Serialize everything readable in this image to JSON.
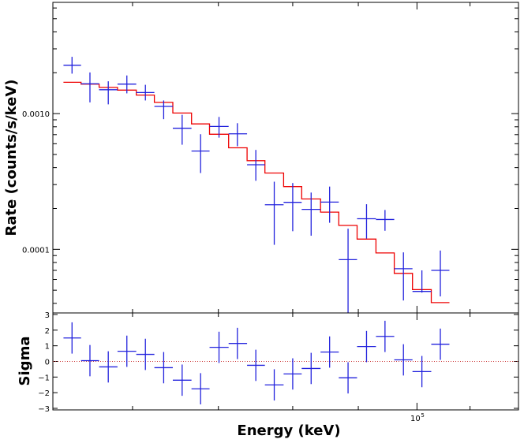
{
  "chart_data": [
    {
      "name": "spectrum",
      "type": "scatter",
      "xscale": "log",
      "yscale": "log",
      "xlim": [
        52000,
        120000
      ],
      "ylim": [
        3.4e-05,
        0.0066
      ],
      "xlabel": "Energy (keV)",
      "ylabel": "Rate (counts/s/keV)",
      "yticks": [
        {
          "value": 0.0001,
          "label": "0.0001"
        },
        {
          "value": 0.001,
          "label": "0.0010"
        }
      ],
      "data_color": "#2222dd",
      "model_color": "#ee0000",
      "data": [
        {
          "x": 53820,
          "xlo": 53000,
          "xhi": 54700,
          "y": 0.00227,
          "ylo": 0.00197,
          "yhi": 0.00262
        },
        {
          "x": 55580,
          "xlo": 54700,
          "xhi": 56500,
          "y": 0.00166,
          "ylo": 0.00121,
          "yhi": 0.00201
        },
        {
          "x": 57440,
          "xlo": 56500,
          "xhi": 58400,
          "y": 0.0015,
          "ylo": 0.00117,
          "yhi": 0.00173
        },
        {
          "x": 59390,
          "xlo": 58400,
          "xhi": 60400,
          "y": 0.00165,
          "ylo": 0.00141,
          "yhi": 0.00191
        },
        {
          "x": 61400,
          "xlo": 60400,
          "xhi": 62400,
          "y": 0.00143,
          "ylo": 0.00125,
          "yhi": 0.00163
        },
        {
          "x": 63450,
          "xlo": 62400,
          "xhi": 64500,
          "y": 0.00113,
          "ylo": 0.00091,
          "yhi": 0.00125
        },
        {
          "x": 65590,
          "xlo": 64500,
          "xhi": 66700,
          "y": 0.00078,
          "ylo": 0.00059,
          "yhi": 0.00098
        },
        {
          "x": 67800,
          "xlo": 66700,
          "xhi": 68900,
          "y": 0.00053,
          "ylo": 0.000365,
          "yhi": 0.000705
        },
        {
          "x": 70080,
          "xlo": 68900,
          "xhi": 71300,
          "y": 0.000805,
          "ylo": 0.000665,
          "yhi": 0.000945
        },
        {
          "x": 72430,
          "xlo": 71300,
          "xhi": 73700,
          "y": 0.00071,
          "ylo": 0.000575,
          "yhi": 0.00085
        },
        {
          "x": 74870,
          "xlo": 73700,
          "xhi": 76100,
          "y": 0.00042,
          "ylo": 0.00032,
          "yhi": 0.00054
        },
        {
          "x": 77390,
          "xlo": 76100,
          "xhi": 78700,
          "y": 0.000213,
          "ylo": 0.000108,
          "yhi": 0.000315
        },
        {
          "x": 80000,
          "xlo": 78700,
          "xhi": 81300,
          "y": 0.000222,
          "ylo": 0.000136,
          "yhi": 0.000308
        },
        {
          "x": 82690,
          "xlo": 81300,
          "xhi": 84100,
          "y": 0.000197,
          "ylo": 0.000126,
          "yhi": 0.000262
        },
        {
          "x": 85480,
          "xlo": 84100,
          "xhi": 86900,
          "y": 0.000223,
          "ylo": 0.000157,
          "yhi": 0.00029
        },
        {
          "x": 88360,
          "xlo": 86900,
          "xhi": 89800,
          "y": 8.4e-05,
          "ylo": 3.4e-05,
          "yhi": 0.000142
        },
        {
          "x": 91340,
          "xlo": 89800,
          "xhi": 92900,
          "y": 0.000168,
          "ylo": 0.00012,
          "yhi": 0.000215
        },
        {
          "x": 94420,
          "xlo": 92900,
          "xhi": 96000,
          "y": 0.000166,
          "ylo": 0.000137,
          "yhi": 0.000195
        },
        {
          "x": 97600,
          "xlo": 96000,
          "xhi": 99200,
          "y": 7.2e-05,
          "ylo": 4.2e-05,
          "yhi": 9.5e-05
        },
        {
          "x": 100890,
          "xlo": 99200,
          "xhi": 102600,
          "y": 4.9e-05,
          "ylo": 4.8e-05,
          "yhi": 7e-05
        },
        {
          "x": 104290,
          "xlo": 102600,
          "xhi": 106000,
          "y": 7e-05,
          "ylo": 4.5e-05,
          "yhi": 9.8e-05
        }
      ],
      "model": [
        {
          "xlo": 53000,
          "xhi": 54700,
          "y": 0.0017
        },
        {
          "xlo": 54700,
          "xhi": 56500,
          "y": 0.00165
        },
        {
          "xlo": 56500,
          "xhi": 58400,
          "y": 0.00156
        },
        {
          "xlo": 58400,
          "xhi": 60400,
          "y": 0.00149
        },
        {
          "xlo": 60400,
          "xhi": 62400,
          "y": 0.00137
        },
        {
          "xlo": 62400,
          "xhi": 64500,
          "y": 0.00121
        },
        {
          "xlo": 64500,
          "xhi": 66700,
          "y": 0.00101
        },
        {
          "xlo": 66700,
          "xhi": 68900,
          "y": 0.00084
        },
        {
          "xlo": 68900,
          "xhi": 71300,
          "y": 0.000705
        },
        {
          "xlo": 71300,
          "xhi": 73700,
          "y": 0.00056
        },
        {
          "xlo": 73700,
          "xhi": 76100,
          "y": 0.00045
        },
        {
          "xlo": 76100,
          "xhi": 78700,
          "y": 0.000365
        },
        {
          "xlo": 78700,
          "xhi": 81300,
          "y": 0.00029
        },
        {
          "xlo": 81300,
          "xhi": 84100,
          "y": 0.000235
        },
        {
          "xlo": 84100,
          "xhi": 86900,
          "y": 0.000188
        },
        {
          "xlo": 86900,
          "xhi": 89800,
          "y": 0.00015
        },
        {
          "xlo": 89800,
          "xhi": 92900,
          "y": 0.000119
        },
        {
          "xlo": 92900,
          "xhi": 96000,
          "y": 9.4e-05
        },
        {
          "xlo": 96000,
          "xhi": 99200,
          "y": 6.65e-05
        },
        {
          "xlo": 99200,
          "xhi": 102600,
          "y": 5.05e-05
        },
        {
          "xlo": 102600,
          "xhi": 106000,
          "y": 4.05e-05
        }
      ]
    },
    {
      "name": "residuals",
      "type": "scatter",
      "xscale": "log",
      "xlim": [
        52000,
        120000
      ],
      "ylim": [
        -3.1,
        3.1
      ],
      "xlabel": "Energy (keV)",
      "ylabel": "Sigma",
      "xtick_label": {
        "base": "10",
        "exp": "5"
      },
      "yticks": [
        -3,
        -2,
        -1,
        0,
        1,
        2,
        3
      ],
      "zero_line_color": "#cc3333",
      "data_color": "#2222dd",
      "data": [
        {
          "x": 53820,
          "xlo": 53000,
          "xhi": 54700,
          "y": 1.5,
          "err": 1.0
        },
        {
          "x": 55580,
          "xlo": 54700,
          "xhi": 56500,
          "y": 0.05,
          "err": 1.0
        },
        {
          "x": 57440,
          "xlo": 56500,
          "xhi": 58400,
          "y": -0.35,
          "err": 1.0
        },
        {
          "x": 59390,
          "xlo": 58400,
          "xhi": 60400,
          "y": 0.65,
          "err": 1.0
        },
        {
          "x": 61400,
          "xlo": 60400,
          "xhi": 62400,
          "y": 0.45,
          "err": 1.0
        },
        {
          "x": 63450,
          "xlo": 62400,
          "xhi": 64500,
          "y": -0.4,
          "err": 1.0
        },
        {
          "x": 65590,
          "xlo": 64500,
          "xhi": 66700,
          "y": -1.2,
          "err": 1.0
        },
        {
          "x": 67800,
          "xlo": 66700,
          "xhi": 68900,
          "y": -1.75,
          "err": 1.0
        },
        {
          "x": 70080,
          "xlo": 68900,
          "xhi": 71300,
          "y": 0.9,
          "err": 1.0
        },
        {
          "x": 72430,
          "xlo": 71300,
          "xhi": 73700,
          "y": 1.15,
          "err": 1.0
        },
        {
          "x": 74870,
          "xlo": 73700,
          "xhi": 76100,
          "y": -0.25,
          "err": 1.0
        },
        {
          "x": 77390,
          "xlo": 76100,
          "xhi": 78700,
          "y": -1.5,
          "err": 1.0
        },
        {
          "x": 80000,
          "xlo": 78700,
          "xhi": 81300,
          "y": -0.8,
          "err": 1.0
        },
        {
          "x": 82690,
          "xlo": 81300,
          "xhi": 84100,
          "y": -0.45,
          "err": 1.0
        },
        {
          "x": 85480,
          "xlo": 84100,
          "xhi": 86900,
          "y": 0.6,
          "err": 1.0
        },
        {
          "x": 88360,
          "xlo": 86900,
          "xhi": 89800,
          "y": -1.05,
          "err": 1.0
        },
        {
          "x": 91340,
          "xlo": 89800,
          "xhi": 92900,
          "y": 0.95,
          "err": 1.0
        },
        {
          "x": 94420,
          "xlo": 92900,
          "xhi": 96000,
          "y": 1.6,
          "err": 1.0
        },
        {
          "x": 97600,
          "xlo": 96000,
          "xhi": 99200,
          "y": 0.1,
          "err": 1.0
        },
        {
          "x": 100890,
          "xlo": 99200,
          "xhi": 102600,
          "y": -0.65,
          "err": 1.0
        },
        {
          "x": 104290,
          "xlo": 102600,
          "xhi": 106000,
          "y": 1.1,
          "err": 1.0
        }
      ]
    }
  ]
}
